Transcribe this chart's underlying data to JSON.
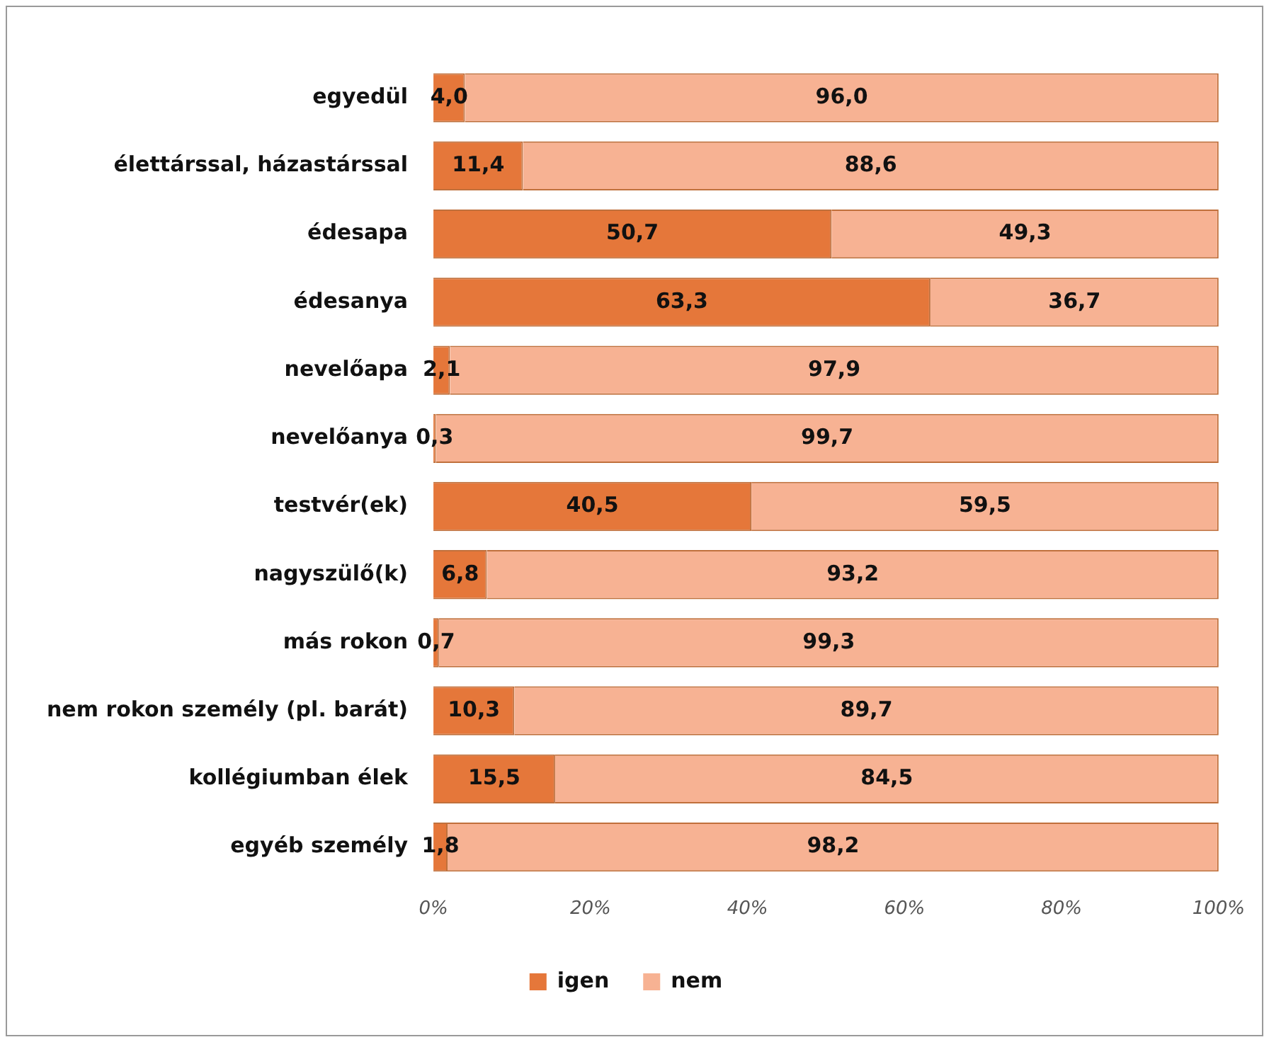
{
  "chart_data": {
    "type": "bar",
    "orientation": "horizontal",
    "stacked": true,
    "categories": [
      "egyedül",
      "élettárssal, házastárssal",
      "édesapa",
      "édesanya",
      "nevelőapa",
      "nevelőanya",
      "testvér(ek)",
      "nagyszülő(k)",
      "más rokon",
      "nem rokon személy (pl. barát)",
      "kollégiumban élek",
      "egyéb személy"
    ],
    "series": [
      {
        "name": "igen",
        "color": "#e5773a",
        "values": [
          4.0,
          11.4,
          50.7,
          63.3,
          2.1,
          0.3,
          40.5,
          6.8,
          0.7,
          10.3,
          15.5,
          1.8
        ],
        "value_labels": [
          "4,0",
          "11,4",
          "50,7",
          "63,3",
          "2,1",
          "0,3",
          "40,5",
          "6,8",
          "0,7",
          "10,3",
          "15,5",
          "1,8"
        ]
      },
      {
        "name": "nem",
        "color": "#f7b293",
        "values": [
          96.0,
          88.6,
          49.3,
          36.7,
          97.9,
          99.7,
          59.5,
          93.2,
          99.3,
          89.7,
          84.5,
          98.2
        ],
        "value_labels": [
          "96,0",
          "88,6",
          "49,3",
          "36,7",
          "97,9",
          "99,7",
          "59,5",
          "93,2",
          "99,3",
          "89,7",
          "84,5",
          "98,2"
        ]
      }
    ],
    "xlim": [
      0,
      100
    ],
    "xticks": [
      {
        "value": 0,
        "label": "0%"
      },
      {
        "value": 20,
        "label": "20%"
      },
      {
        "value": 40,
        "label": "40%"
      },
      {
        "value": 60,
        "label": "60%"
      },
      {
        "value": 80,
        "label": "80%"
      },
      {
        "value": 100,
        "label": "100%"
      }
    ],
    "grid": false,
    "legend": "bottom"
  }
}
